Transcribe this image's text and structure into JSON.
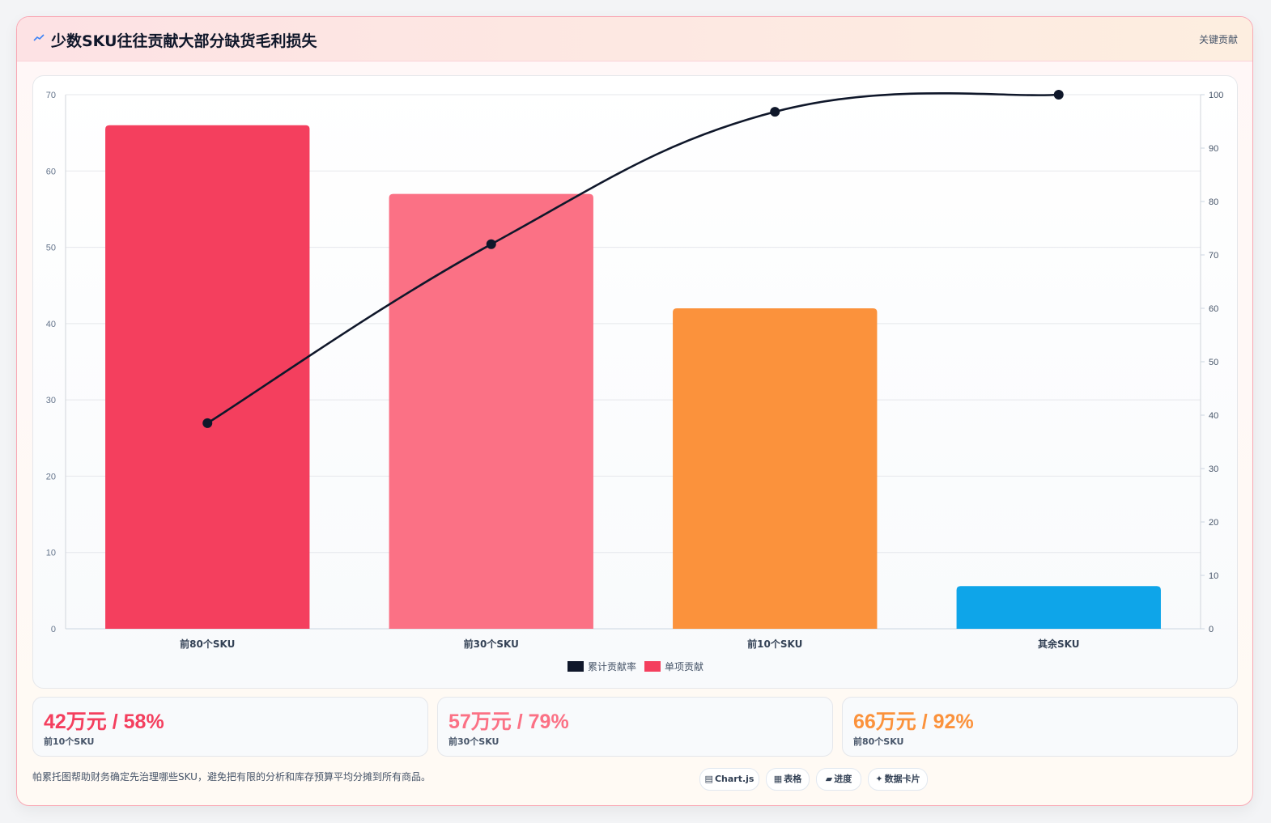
{
  "header": {
    "title": "少数SKU往往贡献大部分缺货毛利损失",
    "title_icon": "sparkline-icon",
    "badge": "关键贡献"
  },
  "chart_data": {
    "type": "bar",
    "categories": [
      "前80个SKU",
      "前30个SKU",
      "前10个SKU",
      "其余SKU"
    ],
    "series": [
      {
        "name": "单项贡献",
        "type": "bar",
        "axis": "left",
        "values": [
          66,
          57,
          42,
          5.6
        ],
        "colors": [
          "#f43f5e",
          "#fb7185",
          "#fb923c",
          "#0ea5e9"
        ]
      },
      {
        "name": "累计贡献率",
        "type": "line",
        "axis": "right",
        "values": [
          38.5,
          72,
          96.8,
          100
        ],
        "color": "#0f172a"
      }
    ],
    "y_left": {
      "min": 0,
      "max": 70,
      "ticks": [
        0,
        10,
        20,
        30,
        40,
        50,
        60,
        70
      ]
    },
    "y_right": {
      "min": 0,
      "max": 100,
      "ticks": [
        0,
        10,
        20,
        30,
        40,
        50,
        60,
        70,
        80,
        90,
        100
      ]
    },
    "legend": [
      "累计贡献率",
      "单项贡献"
    ],
    "legend_position": "bottom",
    "grid": true
  },
  "stats": [
    {
      "value": "42万元 / 58%",
      "label": "前10个SKU",
      "color": "#f43f5e"
    },
    {
      "value": "57万元 / 79%",
      "label": "前30个SKU",
      "color": "#fb7185"
    },
    {
      "value": "66万元 / 92%",
      "label": "前80个SKU",
      "color": "#fb923c"
    }
  ],
  "footnote": "帕累托图帮助财务确定先治理哪些SKU，避免把有限的分析和库存预算平均分摊到所有商品。",
  "chips": [
    {
      "icon": "▤",
      "label": "Chart.js"
    },
    {
      "icon": "▦",
      "label": "表格"
    },
    {
      "icon": "▰",
      "label": "进度"
    },
    {
      "icon": "✦",
      "label": "数据卡片"
    }
  ]
}
